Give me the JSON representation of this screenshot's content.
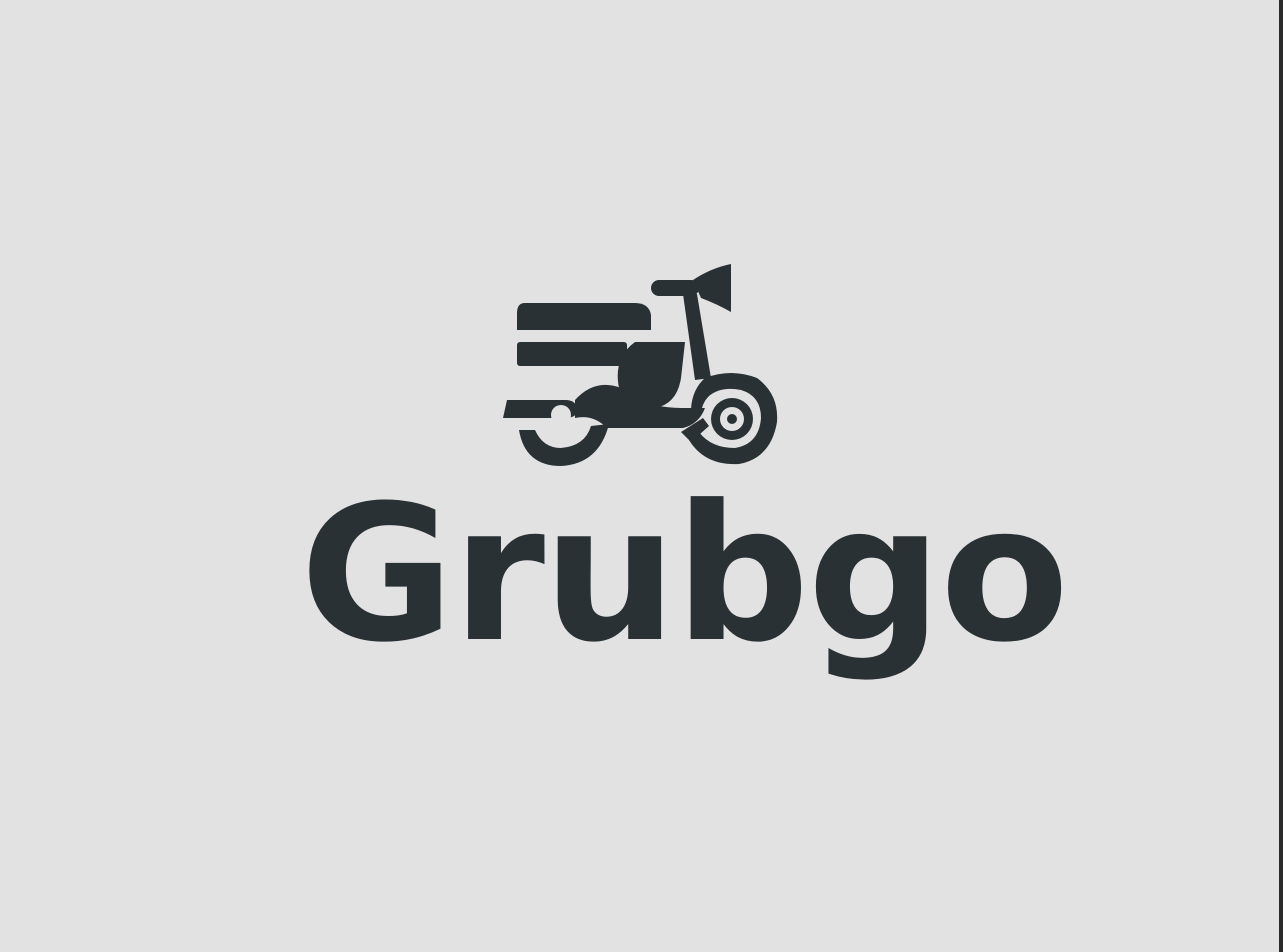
{
  "brand": {
    "name": "Grubgo",
    "icon": "scooter-icon",
    "ink_color": "#2a3134",
    "background_color": "#e2e2e2"
  }
}
